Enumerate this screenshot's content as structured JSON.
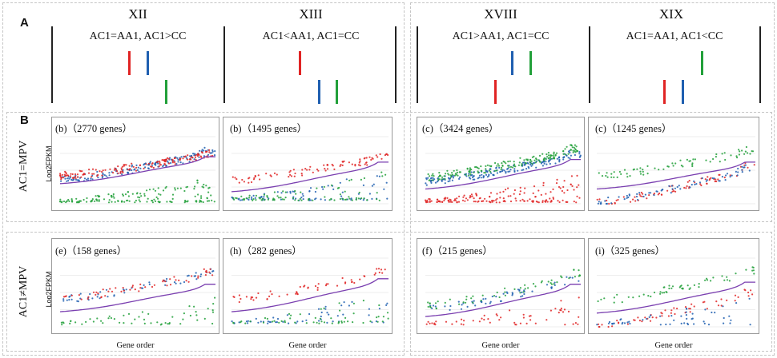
{
  "panel_labels": {
    "a": "A",
    "b": "B"
  },
  "groups": [
    {
      "roman": "XII",
      "condition": "AC1=AA1, AC1>CC",
      "levels": {
        "red": "high",
        "blue": "high",
        "green": "low"
      }
    },
    {
      "roman": "XIII",
      "condition": "AC1<AA1, AC1=CC",
      "levels": {
        "red": "high",
        "blue": "low",
        "green": "low"
      }
    },
    {
      "roman": "XVIII",
      "condition": "AC1>AA1, AC1=CC",
      "levels": {
        "red": "low",
        "blue": "high",
        "green": "high"
      }
    },
    {
      "roman": "XIX",
      "condition": "AC1=AA1, AC1<CC",
      "levels": {
        "red": "low",
        "blue": "low",
        "green": "high"
      }
    }
  ],
  "row_labels": {
    "top": "AC1=MPV",
    "bottom": "AC1≠MPV"
  },
  "ylabel": "Log2FPKM",
  "xlabel": "Gene order",
  "colors": {
    "red": "#e02424",
    "blue": "#1f5fb0",
    "green": "#22a03a",
    "purple": "#7a3fb0"
  },
  "chart_data": [
    {
      "type": "scatter",
      "title": "(b)（2770 genes）",
      "genes": 2770,
      "order": [
        "green",
        "blue",
        "red"
      ],
      "series": {
        "red": [
          0.42,
          0.75
        ],
        "blue": [
          0.36,
          0.78
        ],
        "green": [
          0.02,
          0.35
        ],
        "purple": [
          0.3,
          0.7
        ]
      }
    },
    {
      "type": "scatter",
      "title": "(b)（1495 genes）",
      "genes": 1495,
      "order": [
        "blue",
        "green",
        "red"
      ],
      "series": {
        "red": [
          0.35,
          0.7
        ],
        "blue": [
          0.05,
          0.45
        ],
        "green": [
          0.05,
          0.45
        ],
        "purple": [
          0.18,
          0.62
        ]
      }
    },
    {
      "type": "scatter",
      "title": "(c)（3424 genes）",
      "genes": 3424,
      "order": [
        "red",
        "blue",
        "green"
      ],
      "series": {
        "red": [
          0.02,
          0.4
        ],
        "blue": [
          0.33,
          0.74
        ],
        "green": [
          0.4,
          0.82
        ],
        "purple": [
          0.22,
          0.66
        ]
      }
    },
    {
      "type": "scatter",
      "title": "(c)（1245 genes）",
      "genes": 1245,
      "order": [
        "red",
        "blue",
        "green"
      ],
      "series": {
        "red": [
          0.02,
          0.55
        ],
        "blue": [
          0.02,
          0.55
        ],
        "green": [
          0.42,
          0.8
        ],
        "purple": [
          0.22,
          0.62
        ]
      }
    },
    {
      "type": "scatter",
      "title": "(e)（158 genes）",
      "genes": 158,
      "order": [
        "green",
        "blue",
        "red"
      ],
      "series": {
        "red": [
          0.42,
          0.8
        ],
        "blue": [
          0.4,
          0.8
        ],
        "green": [
          0.03,
          0.4
        ],
        "purple": [
          0.22,
          0.62
        ]
      }
    },
    {
      "type": "scatter",
      "title": "(h)（282 genes）",
      "genes": 282,
      "order": [
        "blue",
        "green",
        "red"
      ],
      "series": {
        "red": [
          0.4,
          0.82
        ],
        "blue": [
          0.05,
          0.45
        ],
        "green": [
          0.05,
          0.45
        ],
        "purple": [
          0.22,
          0.7
        ]
      }
    },
    {
      "type": "scatter",
      "title": "(f)（215 genes）",
      "genes": 215,
      "order": [
        "red",
        "blue",
        "green"
      ],
      "series": {
        "red": [
          0.03,
          0.4
        ],
        "blue": [
          0.25,
          0.7
        ],
        "green": [
          0.3,
          0.78
        ],
        "purple": [
          0.15,
          0.62
        ]
      }
    },
    {
      "type": "scatter",
      "title": "(i)（325 genes）",
      "genes": 325,
      "order": [
        "red",
        "blue",
        "green"
      ],
      "series": {
        "red": [
          0.03,
          0.5
        ],
        "blue": [
          0.03,
          0.45
        ],
        "green": [
          0.38,
          0.82
        ],
        "purple": [
          0.2,
          0.65
        ]
      }
    }
  ]
}
